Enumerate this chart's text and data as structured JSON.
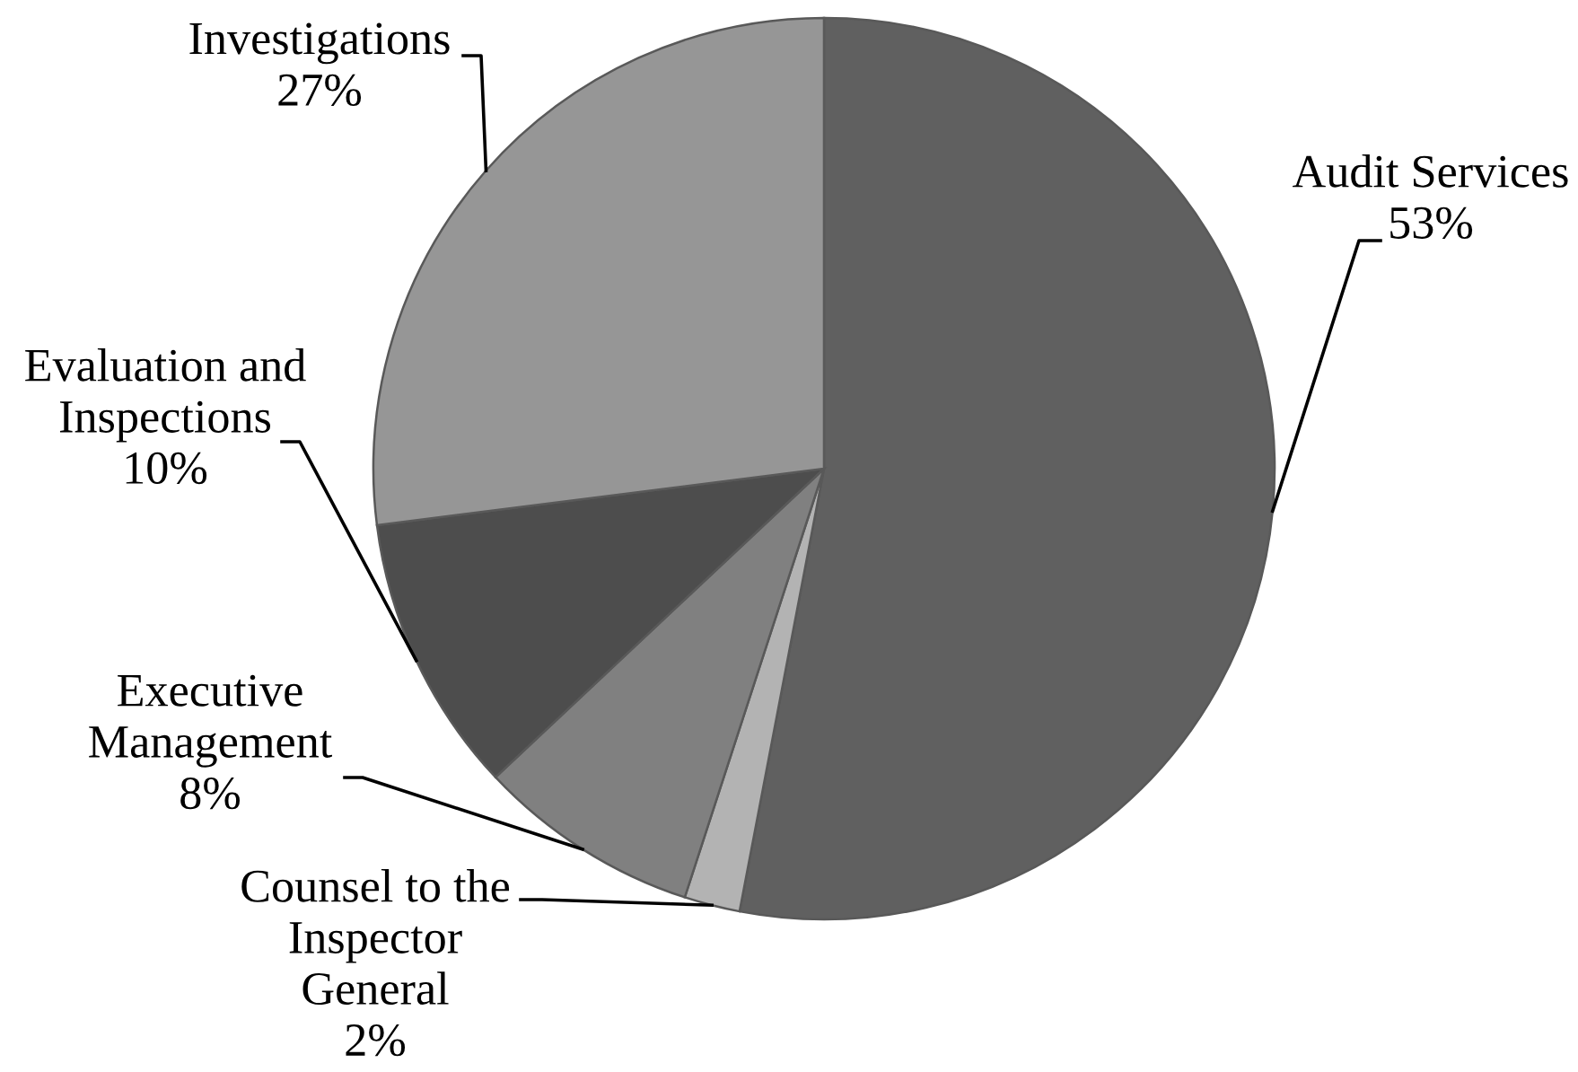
{
  "chart_data": {
    "type": "pie",
    "categories": [
      "Audit Services",
      "Counsel to the Inspector General",
      "Executive Management",
      "Evaluation and Inspections",
      "Investigations"
    ],
    "values": [
      53,
      2,
      8,
      10,
      27
    ],
    "value_labels": [
      "53%",
      "2%",
      "8%",
      "10%",
      "27%"
    ],
    "colors": [
      "#606060",
      "#b3b3b3",
      "#808080",
      "#4d4d4d",
      "#969696"
    ]
  }
}
